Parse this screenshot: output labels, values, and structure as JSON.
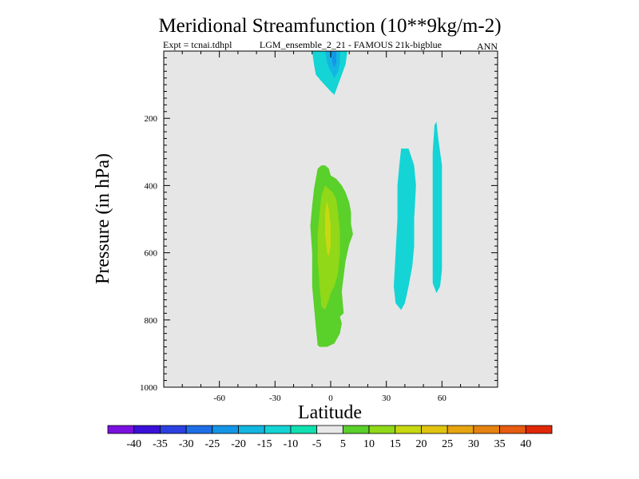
{
  "chart_data": {
    "type": "contour",
    "title": "Meridional Streamfunction (10**9kg/m-2)",
    "subtitle_left": "Expt = tcnai.tdhpl",
    "subtitle_right": "LGM_ensemble_2_21 - FAMOUS 21k-bigblue",
    "season": "ANN",
    "xlabel": "Latitude",
    "ylabel": "Pressure (in hPa)",
    "xlim": [
      -90,
      90
    ],
    "ylim": [
      1000,
      0
    ],
    "xticks": [
      -60,
      -30,
      0,
      30,
      60
    ],
    "yticks": [
      200,
      400,
      600,
      800,
      1000
    ],
    "colorbar": {
      "levels": [
        -40,
        -35,
        -30,
        -25,
        -20,
        -15,
        -10,
        -5,
        5,
        10,
        15,
        20,
        25,
        30,
        35,
        40
      ],
      "labels": [
        "-40",
        "-35",
        "-30",
        "-25",
        "-20",
        "-15",
        "-10",
        "-5",
        "5",
        "10",
        "15",
        "20",
        "25",
        "30",
        "35",
        "40"
      ],
      "colors": [
        "#7a10e0",
        "#3a10d8",
        "#2a40e0",
        "#1e6ee6",
        "#1496e6",
        "#12b6e0",
        "#14d4d6",
        "#10e0b0",
        "#e8e8e8",
        "#5ad02a",
        "#90d818",
        "#c8d810",
        "#e0c410",
        "#e6a410",
        "#e68210",
        "#e65c10",
        "#e02808"
      ]
    },
    "regions": [
      {
        "name": "cell-neg-upper",
        "value": -7,
        "color": "#14d4d6",
        "points": [
          [
            -10,
            0
          ],
          [
            -9,
            40
          ],
          [
            -8,
            70
          ],
          [
            -5,
            90
          ],
          [
            0,
            120
          ],
          [
            2,
            130
          ],
          [
            4,
            100
          ],
          [
            6,
            70
          ],
          [
            8,
            40
          ],
          [
            9,
            0
          ]
        ]
      },
      {
        "name": "cell-neg-core-a",
        "value": -12,
        "color": "#12b6e0",
        "points": [
          [
            -3,
            0
          ],
          [
            -2,
            35
          ],
          [
            0,
            60
          ],
          [
            2,
            80
          ],
          [
            4,
            60
          ],
          [
            5,
            35
          ],
          [
            5,
            0
          ]
        ]
      },
      {
        "name": "cell-neg-core-b",
        "value": -17,
        "color": "#1496e6",
        "points": [
          [
            0,
            0
          ],
          [
            1,
            35
          ],
          [
            2,
            50
          ],
          [
            3,
            35
          ],
          [
            3,
            0
          ]
        ]
      },
      {
        "name": "cell-pos-outer",
        "value": 7,
        "color": "#5ad02a",
        "points": [
          [
            -5,
            340
          ],
          [
            -3,
            340
          ],
          [
            -1,
            350
          ],
          [
            0,
            370
          ],
          [
            3,
            380
          ],
          [
            6,
            400
          ],
          [
            8,
            420
          ],
          [
            10,
            450
          ],
          [
            11,
            480
          ],
          [
            11,
            515
          ],
          [
            12,
            545
          ],
          [
            10,
            575
          ],
          [
            8,
            625
          ],
          [
            6,
            715
          ],
          [
            7,
            780
          ],
          [
            5,
            790
          ],
          [
            6,
            810
          ],
          [
            5,
            840
          ],
          [
            2,
            870
          ],
          [
            0,
            875
          ],
          [
            -2,
            880
          ],
          [
            -6,
            880
          ],
          [
            -7,
            875
          ],
          [
            -8,
            820
          ],
          [
            -9,
            760
          ],
          [
            -10,
            700
          ],
          [
            -10,
            600
          ],
          [
            -11,
            520
          ],
          [
            -10,
            460
          ],
          [
            -9,
            410
          ],
          [
            -7,
            350
          ]
        ]
      },
      {
        "name": "cell-pos-mid",
        "value": 12,
        "color": "#90d818",
        "points": [
          [
            -3,
            400
          ],
          [
            -1,
            410
          ],
          [
            1,
            420
          ],
          [
            3,
            440
          ],
          [
            4,
            480
          ],
          [
            5,
            540
          ],
          [
            5,
            600
          ],
          [
            4,
            660
          ],
          [
            2,
            700
          ],
          [
            0,
            720
          ],
          [
            -1,
            740
          ],
          [
            -3,
            770
          ],
          [
            -5,
            760
          ],
          [
            -6,
            700
          ],
          [
            -7,
            620
          ],
          [
            -7,
            540
          ],
          [
            -6,
            480
          ],
          [
            -5,
            430
          ]
        ]
      },
      {
        "name": "cell-pos-inner",
        "value": 17,
        "color": "#c8d810",
        "points": [
          [
            -2,
            445
          ],
          [
            -1,
            470
          ],
          [
            0,
            520
          ],
          [
            0,
            580
          ],
          [
            -1,
            610
          ],
          [
            -2,
            600
          ],
          [
            -3,
            540
          ],
          [
            -3,
            480
          ]
        ]
      },
      {
        "name": "cell-neg-mid-lat",
        "value": -7,
        "color": "#14d4d6",
        "points": [
          [
            38,
            290
          ],
          [
            42,
            290
          ],
          [
            45,
            340
          ],
          [
            46,
            400
          ],
          [
            45,
            500
          ],
          [
            45,
            580
          ],
          [
            44,
            640
          ],
          [
            42,
            700
          ],
          [
            40,
            750
          ],
          [
            38,
            770
          ],
          [
            35,
            750
          ],
          [
            34,
            700
          ],
          [
            35,
            600
          ],
          [
            36,
            500
          ],
          [
            36,
            400
          ],
          [
            37,
            340
          ]
        ]
      },
      {
        "name": "cell-neg-high-lat",
        "value": -7,
        "color": "#14d4d6",
        "points": [
          [
            56,
            220
          ],
          [
            57,
            210
          ],
          [
            58,
            260
          ],
          [
            60,
            340
          ],
          [
            60,
            450
          ],
          [
            60,
            550
          ],
          [
            60,
            650
          ],
          [
            59,
            700
          ],
          [
            57,
            720
          ],
          [
            55,
            690
          ],
          [
            55,
            600
          ],
          [
            55,
            500
          ],
          [
            55,
            400
          ],
          [
            55,
            300
          ]
        ]
      }
    ]
  }
}
